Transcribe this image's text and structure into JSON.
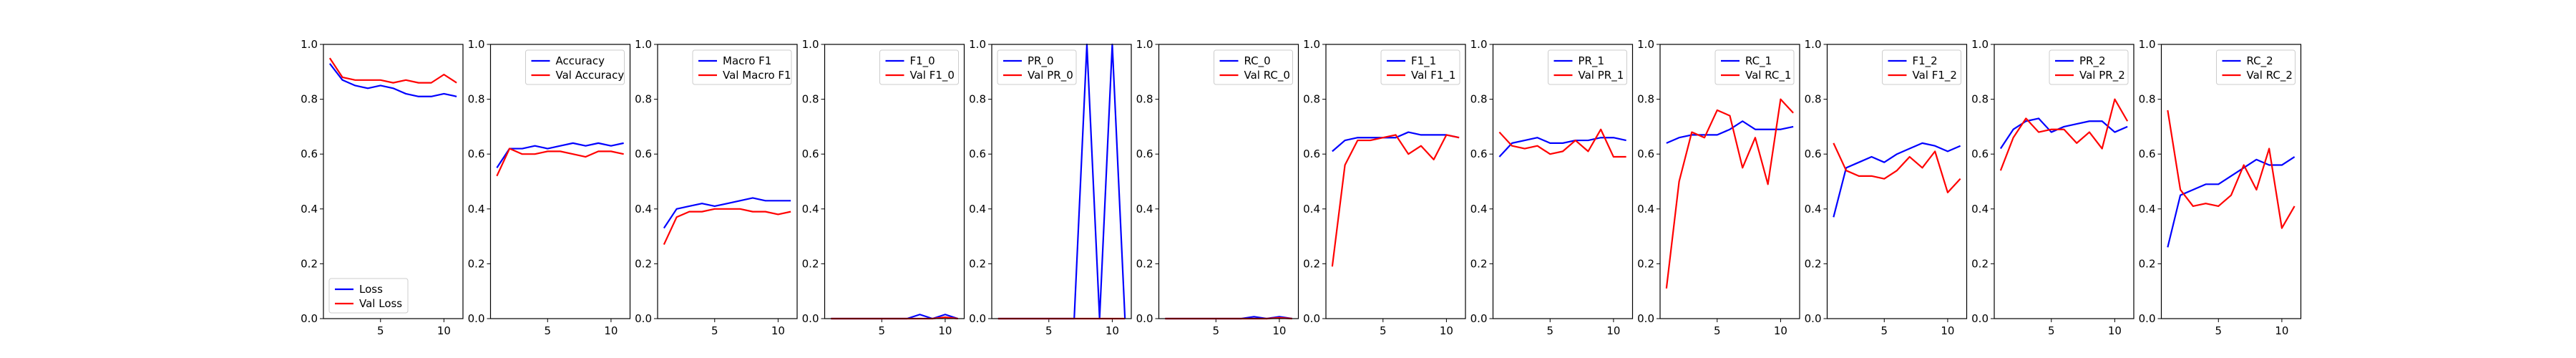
{
  "chart_data": [
    {
      "type": "line",
      "x": [
        1,
        2,
        3,
        4,
        5,
        6,
        7,
        8,
        9,
        10,
        11
      ],
      "xticks": [
        5,
        10
      ],
      "yticks": [
        0.0,
        0.2,
        0.4,
        0.6,
        0.8,
        1.0
      ],
      "ylim": [
        0,
        1
      ],
      "legend": "lower-left",
      "series": [
        {
          "name": "Loss",
          "color": "#0000ff",
          "values": [
            0.93,
            0.87,
            0.85,
            0.84,
            0.85,
            0.84,
            0.82,
            0.81,
            0.81,
            0.82,
            0.81
          ]
        },
        {
          "name": "Val Loss",
          "color": "#ff0000",
          "values": [
            0.95,
            0.88,
            0.87,
            0.87,
            0.87,
            0.86,
            0.87,
            0.86,
            0.86,
            0.89,
            0.86
          ]
        }
      ]
    },
    {
      "type": "line",
      "x": [
        1,
        2,
        3,
        4,
        5,
        6,
        7,
        8,
        9,
        10,
        11
      ],
      "xticks": [
        5,
        10
      ],
      "yticks": [
        0.0,
        0.2,
        0.4,
        0.6,
        0.8,
        1.0
      ],
      "ylim": [
        0,
        1
      ],
      "legend": "top-right",
      "series": [
        {
          "name": "Accuracy",
          "color": "#0000ff",
          "values": [
            0.55,
            0.62,
            0.62,
            0.63,
            0.62,
            0.63,
            0.64,
            0.63,
            0.64,
            0.63,
            0.64
          ]
        },
        {
          "name": "Val Accuracy",
          "color": "#ff0000",
          "values": [
            0.52,
            0.62,
            0.6,
            0.6,
            0.61,
            0.61,
            0.6,
            0.59,
            0.61,
            0.61,
            0.6
          ]
        }
      ]
    },
    {
      "type": "line",
      "x": [
        1,
        2,
        3,
        4,
        5,
        6,
        7,
        8,
        9,
        10,
        11
      ],
      "xticks": [
        5,
        10
      ],
      "yticks": [
        0.0,
        0.2,
        0.4,
        0.6,
        0.8,
        1.0
      ],
      "ylim": [
        0,
        1
      ],
      "legend": "top-right",
      "series": [
        {
          "name": "Macro F1",
          "color": "#0000ff",
          "values": [
            0.33,
            0.4,
            0.41,
            0.42,
            0.41,
            0.42,
            0.43,
            0.44,
            0.43,
            0.43,
            0.43
          ]
        },
        {
          "name": "Val Macro F1",
          "color": "#ff0000",
          "values": [
            0.27,
            0.37,
            0.39,
            0.39,
            0.4,
            0.4,
            0.4,
            0.39,
            0.39,
            0.38,
            0.39
          ]
        }
      ]
    },
    {
      "type": "line",
      "x": [
        1,
        2,
        3,
        4,
        5,
        6,
        7,
        8,
        9,
        10,
        11
      ],
      "xticks": [
        5,
        10
      ],
      "yticks": [
        0.0,
        0.2,
        0.4,
        0.6,
        0.8,
        1.0
      ],
      "ylim": [
        0,
        1
      ],
      "legend": "top-right",
      "series": [
        {
          "name": "F1_0",
          "color": "#0000ff",
          "values": [
            0,
            0,
            0,
            0,
            0,
            0,
            0,
            0.015,
            0,
            0.015,
            0
          ]
        },
        {
          "name": "Val F1_0",
          "color": "#ff0000",
          "values": [
            0,
            0,
            0,
            0,
            0,
            0,
            0,
            0,
            0,
            0.005,
            0
          ]
        }
      ]
    },
    {
      "type": "line",
      "x": [
        1,
        2,
        3,
        4,
        5,
        6,
        7,
        8,
        9,
        10,
        11
      ],
      "xticks": [
        5,
        10
      ],
      "yticks": [
        0.0,
        0.2,
        0.4,
        0.6,
        0.8,
        1.0
      ],
      "ylim": [
        0,
        1
      ],
      "legend": "top-left",
      "series": [
        {
          "name": "PR_0",
          "color": "#0000ff",
          "values": [
            0,
            0,
            0,
            0,
            0,
            0,
            0,
            1.0,
            0,
            1.0,
            0
          ]
        },
        {
          "name": "Val PR_0",
          "color": "#ff0000",
          "values": [
            0,
            0,
            0,
            0,
            0,
            0,
            0,
            0,
            0,
            0,
            0
          ]
        }
      ]
    },
    {
      "type": "line",
      "x": [
        1,
        2,
        3,
        4,
        5,
        6,
        7,
        8,
        9,
        10,
        11
      ],
      "xticks": [
        5,
        10
      ],
      "yticks": [
        0.0,
        0.2,
        0.4,
        0.6,
        0.8,
        1.0
      ],
      "ylim": [
        0,
        1
      ],
      "legend": "top-right",
      "series": [
        {
          "name": "RC_0",
          "color": "#0000ff",
          "values": [
            0,
            0,
            0,
            0,
            0,
            0,
            0,
            0.007,
            0,
            0.007,
            0
          ]
        },
        {
          "name": "Val RC_0",
          "color": "#ff0000",
          "values": [
            0,
            0,
            0,
            0,
            0,
            0,
            0,
            0,
            0,
            0.003,
            0
          ]
        }
      ]
    },
    {
      "type": "line",
      "x": [
        1,
        2,
        3,
        4,
        5,
        6,
        7,
        8,
        9,
        10,
        11
      ],
      "xticks": [
        5,
        10
      ],
      "yticks": [
        0.0,
        0.2,
        0.4,
        0.6,
        0.8,
        1.0
      ],
      "ylim": [
        0,
        1
      ],
      "legend": "top-right",
      "series": [
        {
          "name": "F1_1",
          "color": "#0000ff",
          "values": [
            0.61,
            0.65,
            0.66,
            0.66,
            0.66,
            0.66,
            0.68,
            0.67,
            0.67,
            0.67,
            0.66
          ]
        },
        {
          "name": "Val F1_1",
          "color": "#ff0000",
          "values": [
            0.19,
            0.56,
            0.65,
            0.65,
            0.66,
            0.67,
            0.6,
            0.63,
            0.58,
            0.67,
            0.66
          ]
        }
      ]
    },
    {
      "type": "line",
      "x": [
        1,
        2,
        3,
        4,
        5,
        6,
        7,
        8,
        9,
        10,
        11
      ],
      "xticks": [
        5,
        10
      ],
      "yticks": [
        0.0,
        0.2,
        0.4,
        0.6,
        0.8,
        1.0
      ],
      "ylim": [
        0,
        1
      ],
      "legend": "top-right",
      "series": [
        {
          "name": "PR_1",
          "color": "#0000ff",
          "values": [
            0.59,
            0.64,
            0.65,
            0.66,
            0.64,
            0.64,
            0.65,
            0.65,
            0.66,
            0.66,
            0.65
          ]
        },
        {
          "name": "Val PR_1",
          "color": "#ff0000",
          "values": [
            0.68,
            0.63,
            0.62,
            0.63,
            0.6,
            0.61,
            0.65,
            0.61,
            0.69,
            0.59,
            0.59
          ]
        }
      ]
    },
    {
      "type": "line",
      "x": [
        1,
        2,
        3,
        4,
        5,
        6,
        7,
        8,
        9,
        10,
        11
      ],
      "xticks": [
        5,
        10
      ],
      "yticks": [
        0.0,
        0.2,
        0.4,
        0.6,
        0.8,
        1.0
      ],
      "ylim": [
        0,
        1
      ],
      "legend": "top-right",
      "series": [
        {
          "name": "RC_1",
          "color": "#0000ff",
          "values": [
            0.64,
            0.66,
            0.67,
            0.67,
            0.67,
            0.69,
            0.72,
            0.69,
            0.69,
            0.69,
            0.7
          ]
        },
        {
          "name": "Val RC_1",
          "color": "#ff0000",
          "values": [
            0.11,
            0.5,
            0.68,
            0.66,
            0.76,
            0.74,
            0.55,
            0.66,
            0.49,
            0.8,
            0.75
          ]
        }
      ]
    },
    {
      "type": "line",
      "x": [
        1,
        2,
        3,
        4,
        5,
        6,
        7,
        8,
        9,
        10,
        11
      ],
      "xticks": [
        5,
        10
      ],
      "yticks": [
        0.0,
        0.2,
        0.4,
        0.6,
        0.8,
        1.0
      ],
      "ylim": [
        0,
        1
      ],
      "legend": "top-right",
      "series": [
        {
          "name": "F1_2",
          "color": "#0000ff",
          "values": [
            0.37,
            0.55,
            0.57,
            0.59,
            0.57,
            0.6,
            0.62,
            0.64,
            0.63,
            0.61,
            0.63
          ]
        },
        {
          "name": "Val F1_2",
          "color": "#ff0000",
          "values": [
            0.64,
            0.54,
            0.52,
            0.52,
            0.51,
            0.54,
            0.59,
            0.55,
            0.61,
            0.46,
            0.51
          ]
        }
      ]
    },
    {
      "type": "line",
      "x": [
        1,
        2,
        3,
        4,
        5,
        6,
        7,
        8,
        9,
        10,
        11
      ],
      "xticks": [
        5,
        10
      ],
      "yticks": [
        0.0,
        0.2,
        0.4,
        0.6,
        0.8,
        1.0
      ],
      "ylim": [
        0,
        1
      ],
      "legend": "top-right",
      "series": [
        {
          "name": "PR_2",
          "color": "#0000ff",
          "values": [
            0.62,
            0.69,
            0.72,
            0.73,
            0.68,
            0.7,
            0.71,
            0.72,
            0.72,
            0.68,
            0.7
          ]
        },
        {
          "name": "Val PR_2",
          "color": "#ff0000",
          "values": [
            0.54,
            0.66,
            0.73,
            0.68,
            0.69,
            0.69,
            0.64,
            0.68,
            0.62,
            0.8,
            0.72
          ]
        }
      ]
    },
    {
      "type": "line",
      "x": [
        1,
        2,
        3,
        4,
        5,
        6,
        7,
        8,
        9,
        10,
        11
      ],
      "xticks": [
        5,
        10
      ],
      "yticks": [
        0.0,
        0.2,
        0.4,
        0.6,
        0.8,
        1.0
      ],
      "ylim": [
        0,
        1
      ],
      "legend": "top-right",
      "series": [
        {
          "name": "RC_2",
          "color": "#0000ff",
          "values": [
            0.26,
            0.45,
            0.47,
            0.49,
            0.49,
            0.52,
            0.55,
            0.58,
            0.56,
            0.56,
            0.59
          ]
        },
        {
          "name": "Val RC_2",
          "color": "#ff0000",
          "values": [
            0.76,
            0.47,
            0.41,
            0.42,
            0.41,
            0.45,
            0.56,
            0.47,
            0.62,
            0.33,
            0.41
          ]
        }
      ]
    }
  ]
}
